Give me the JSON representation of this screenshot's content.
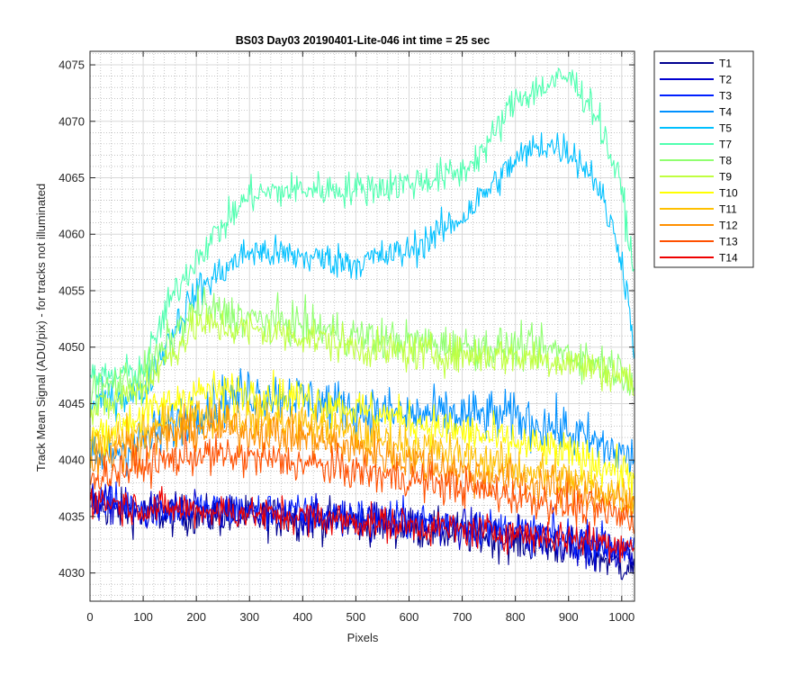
{
  "chart_data": {
    "type": "line",
    "title": "BS03 Day03 20190401-Lite-046 int time = 25 sec",
    "xlabel": "Pixels",
    "ylabel": "Track Mean Signal (ADU/pix) - for tracks not illuminated",
    "xlim": [
      0,
      1024
    ],
    "ylim": [
      4027.5,
      4076.2
    ],
    "xticks": [
      0,
      100,
      200,
      300,
      400,
      500,
      600,
      700,
      800,
      900,
      1000
    ],
    "yticks": [
      4030,
      4035,
      4040,
      4045,
      4050,
      4055,
      4060,
      4065,
      4070,
      4075
    ],
    "grid": "major and minor",
    "legend_position": "outside-right",
    "series": [
      {
        "name": "T1",
        "color": "#00008f",
        "anchors_x": [
          0,
          100,
          300,
          500,
          700,
          900,
          1024
        ],
        "anchors_y": [
          4036,
          4035.2,
          4035,
          4034.5,
          4033.5,
          4032.2,
          4030.5
        ],
        "noise": 1.3
      },
      {
        "name": "T2",
        "color": "#0000d0",
        "anchors_x": [
          0,
          100,
          300,
          500,
          700,
          900,
          1024
        ],
        "anchors_y": [
          4036.3,
          4035.5,
          4035.2,
          4034.8,
          4034,
          4032.8,
          4031.5
        ],
        "noise": 1.2
      },
      {
        "name": "T3",
        "color": "#0020ff",
        "anchors_x": [
          0,
          100,
          300,
          500,
          700,
          900,
          1024
        ],
        "anchors_y": [
          4036.6,
          4035.8,
          4035.5,
          4035,
          4034.3,
          4033.2,
          4032
        ],
        "noise": 1.2
      },
      {
        "name": "T4",
        "color": "#0090ff",
        "anchors_x": [
          0,
          100,
          200,
          300,
          400,
          500,
          600,
          700,
          800,
          900,
          1000,
          1024
        ],
        "anchors_y": [
          4040,
          4041.5,
          4044.5,
          4046,
          4045.5,
          4044.5,
          4044,
          4044,
          4043.8,
          4042.5,
          4040.5,
          4040
        ],
        "noise": 1.6
      },
      {
        "name": "T5",
        "color": "#00c0ff",
        "anchors_x": [
          0,
          100,
          150,
          200,
          300,
          400,
          500,
          600,
          700,
          800,
          850,
          900,
          950,
          1000,
          1024
        ],
        "anchors_y": [
          4045,
          4046,
          4051,
          4055,
          4058.5,
          4058,
          4057.5,
          4058.5,
          4061.5,
          4066.5,
          4068,
          4067.5,
          4065,
          4058,
          4050
        ],
        "noise": 1.1
      },
      {
        "name": "T7",
        "color": "#50ffb0",
        "anchors_x": [
          0,
          100,
          150,
          200,
          300,
          400,
          500,
          600,
          700,
          750,
          800,
          850,
          900,
          950,
          1000,
          1024
        ],
        "anchors_y": [
          4047,
          4048,
          4054,
          4058,
          4063.5,
          4064,
          4064,
          4064.5,
          4065.5,
          4068,
          4072,
          4073,
          4074,
          4071,
          4064,
          4056
        ],
        "noise": 1.1
      },
      {
        "name": "T8",
        "color": "#90ff70",
        "anchors_x": [
          0,
          100,
          200,
          300,
          400,
          500,
          600,
          700,
          800,
          900,
          1000,
          1024
        ],
        "anchors_y": [
          4046,
          4047.5,
          4053.5,
          4052.5,
          4052,
          4051,
          4050.5,
          4050,
          4050,
          4049.5,
          4048,
          4047
        ],
        "noise": 1.3
      },
      {
        "name": "T9",
        "color": "#c0ff40",
        "anchors_x": [
          0,
          100,
          200,
          300,
          400,
          500,
          600,
          700,
          800,
          900,
          1000,
          1024
        ],
        "anchors_y": [
          4044,
          4046.5,
          4052,
          4051.5,
          4051,
          4050,
          4049.5,
          4049.3,
          4049.2,
          4048.7,
          4047.5,
          4046.5
        ],
        "noise": 1.2
      },
      {
        "name": "T10",
        "color": "#ffff00",
        "anchors_x": [
          0,
          100,
          200,
          300,
          400,
          500,
          600,
          700,
          800,
          900,
          1000,
          1024
        ],
        "anchors_y": [
          4042,
          4044,
          4046,
          4046,
          4045.5,
          4044.5,
          4043.5,
          4042.5,
          4041.5,
          4040.5,
          4039,
          4038.5
        ],
        "noise": 1.3
      },
      {
        "name": "T11",
        "color": "#ffc000",
        "anchors_x": [
          0,
          100,
          200,
          300,
          400,
          500,
          600,
          700,
          800,
          900,
          1000,
          1024
        ],
        "anchors_y": [
          4041,
          4042.5,
          4044,
          4043.8,
          4043.3,
          4042.3,
          4041.3,
          4040.3,
          4039.3,
          4038.3,
          4037,
          4036.5
        ],
        "noise": 1.3
      },
      {
        "name": "T12",
        "color": "#ff9000",
        "anchors_x": [
          0,
          100,
          200,
          300,
          400,
          500,
          600,
          700,
          800,
          900,
          1000,
          1024
        ],
        "anchors_y": [
          4040,
          4041.5,
          4042.8,
          4042.6,
          4042,
          4041,
          4040,
          4039,
          4038.2,
          4037.3,
          4036.2,
          4035.8
        ],
        "noise": 1.3
      },
      {
        "name": "T13",
        "color": "#ff5000",
        "anchors_x": [
          0,
          100,
          200,
          300,
          400,
          500,
          600,
          700,
          800,
          900,
          1000,
          1024
        ],
        "anchors_y": [
          4038.5,
          4039.5,
          4040.5,
          4040.2,
          4039.7,
          4039,
          4038.3,
          4037.6,
          4036.8,
          4036,
          4035,
          4034.6
        ],
        "noise": 1.2
      },
      {
        "name": "T14",
        "color": "#ee0000",
        "anchors_x": [
          0,
          100,
          200,
          300,
          400,
          500,
          600,
          700,
          800,
          900,
          1000,
          1024
        ],
        "anchors_y": [
          4036.5,
          4035.8,
          4035.6,
          4035.3,
          4035,
          4034.6,
          4034.2,
          4033.8,
          4033.5,
          4033.1,
          4032.6,
          4032.4
        ],
        "noise": 1.1
      }
    ]
  }
}
